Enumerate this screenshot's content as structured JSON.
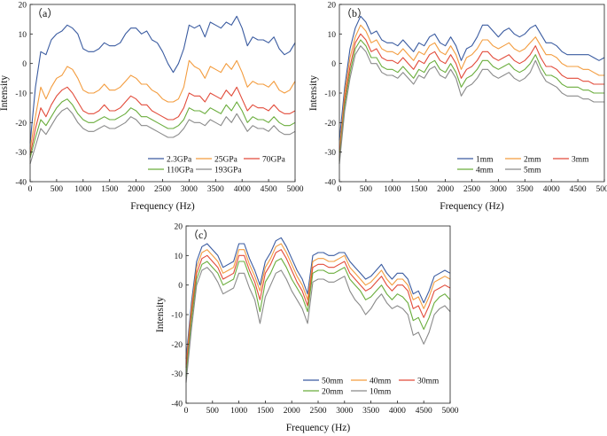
{
  "chart_data": [
    {
      "type": "line",
      "panel_label": "（a）",
      "xlabel": "Frequency (Hz)",
      "ylabel": "Intensity",
      "xlim": [
        0,
        5000
      ],
      "ylim": [
        -40,
        20
      ],
      "xticks": [
        0,
        500,
        1000,
        1500,
        2000,
        2500,
        3000,
        3500,
        4000,
        4500,
        5000
      ],
      "yticks": [
        -40,
        -30,
        -20,
        -10,
        0,
        10,
        20
      ],
      "legend_position": "bottom-right",
      "legend_columns": 3,
      "x": [
        0,
        100,
        200,
        300,
        400,
        500,
        600,
        700,
        800,
        900,
        1000,
        1100,
        1200,
        1300,
        1400,
        1500,
        1600,
        1700,
        1800,
        1900,
        2000,
        2100,
        2200,
        2300,
        2400,
        2500,
        2600,
        2700,
        2800,
        2900,
        3000,
        3100,
        3200,
        3300,
        3400,
        3500,
        3600,
        3700,
        3800,
        3900,
        4000,
        4100,
        4200,
        4300,
        4400,
        4500,
        4600,
        4700,
        4800,
        4900,
        5000
      ],
      "series": [
        {
          "name": "2.3GPa",
          "color": "#3a5ba0",
          "values": [
            -27,
            -8,
            4,
            3,
            8,
            10,
            11,
            13,
            12,
            10,
            5,
            4,
            4,
            5,
            7,
            6,
            6,
            7,
            10,
            12,
            12,
            10,
            11,
            8,
            7,
            4,
            0,
            -3,
            0,
            5,
            13,
            12,
            13,
            9,
            14,
            13,
            12,
            14,
            13,
            16,
            12,
            6,
            9,
            8,
            8,
            7,
            9,
            5,
            3,
            4,
            7
          ]
        },
        {
          "name": "25GPa",
          "color": "#f39c3e",
          "values": [
            -29,
            -18,
            -8,
            -12,
            -8,
            -5,
            -4,
            -1,
            -2,
            -5,
            -9,
            -10,
            -10,
            -9,
            -7,
            -9,
            -9,
            -8,
            -6,
            -4,
            -5,
            -7,
            -7,
            -9,
            -10,
            -12,
            -13,
            -13,
            -12,
            -8,
            1,
            -1,
            -2,
            -5,
            -1,
            -2,
            -3,
            0,
            -2,
            1,
            -3,
            -8,
            -6,
            -7,
            -7,
            -8,
            -6,
            -9,
            -10,
            -9,
            -6
          ]
        },
        {
          "name": "70GPa",
          "color": "#e24b3a",
          "values": [
            -31,
            -22,
            -15,
            -18,
            -14,
            -11,
            -9,
            -8,
            -10,
            -13,
            -16,
            -17,
            -17,
            -16,
            -14,
            -16,
            -16,
            -15,
            -13,
            -11,
            -12,
            -14,
            -14,
            -16,
            -17,
            -18,
            -19,
            -19,
            -18,
            -15,
            -10,
            -11,
            -11,
            -13,
            -10,
            -11,
            -12,
            -9,
            -11,
            -8,
            -12,
            -16,
            -14,
            -15,
            -15,
            -16,
            -14,
            -16,
            -17,
            -17,
            -16
          ]
        },
        {
          "name": "110GPa",
          "color": "#6aad3c",
          "values": [
            -32,
            -25,
            -19,
            -21,
            -18,
            -15,
            -13,
            -12,
            -14,
            -17,
            -19,
            -20,
            -20,
            -19,
            -18,
            -19,
            -19,
            -18,
            -17,
            -15,
            -16,
            -18,
            -18,
            -19,
            -20,
            -21,
            -22,
            -22,
            -21,
            -19,
            -15,
            -16,
            -16,
            -17,
            -15,
            -16,
            -17,
            -14,
            -16,
            -13,
            -16,
            -20,
            -18,
            -19,
            -19,
            -20,
            -18,
            -20,
            -21,
            -21,
            -20
          ]
        },
        {
          "name": "193GPa",
          "color": "#8a8a8a",
          "values": [
            -34,
            -28,
            -22,
            -24,
            -21,
            -18,
            -16,
            -15,
            -17,
            -20,
            -22,
            -23,
            -23,
            -22,
            -21,
            -22,
            -22,
            -21,
            -20,
            -18,
            -19,
            -21,
            -21,
            -22,
            -23,
            -24,
            -25,
            -25,
            -24,
            -22,
            -19,
            -20,
            -20,
            -21,
            -19,
            -20,
            -21,
            -18,
            -20,
            -17,
            -20,
            -23,
            -21,
            -22,
            -22,
            -23,
            -21,
            -23,
            -24,
            -24,
            -23
          ]
        }
      ]
    },
    {
      "type": "line",
      "panel_label": "（b）",
      "xlabel": "Frequency (Hz)",
      "ylabel": "Intensity",
      "xlim": [
        0,
        5000
      ],
      "ylim": [
        -40,
        20
      ],
      "xticks": [
        0,
        500,
        1000,
        1500,
        2000,
        2500,
        3000,
        3500,
        4000,
        4500,
        5000
      ],
      "yticks": [
        -40,
        -30,
        -20,
        -10,
        0,
        10,
        20
      ],
      "legend_position": "bottom-right",
      "legend_columns": 3,
      "x": [
        0,
        100,
        200,
        300,
        400,
        500,
        600,
        700,
        800,
        900,
        1000,
        1100,
        1200,
        1300,
        1400,
        1500,
        1600,
        1700,
        1800,
        1900,
        2000,
        2100,
        2200,
        2300,
        2400,
        2500,
        2600,
        2700,
        2800,
        2900,
        3000,
        3100,
        3200,
        3300,
        3400,
        3500,
        3600,
        3700,
        3800,
        3900,
        4000,
        4100,
        4200,
        4300,
        4400,
        4500,
        4600,
        4700,
        4800,
        4900,
        5000
      ],
      "series": [
        {
          "name": "1mm",
          "color": "#3a5ba0",
          "values": [
            -26,
            -8,
            5,
            12,
            16,
            14,
            10,
            11,
            8,
            7,
            7,
            6,
            8,
            6,
            4,
            7,
            6,
            9,
            10,
            7,
            6,
            9,
            6,
            1,
            5,
            6,
            9,
            13,
            13,
            11,
            9,
            11,
            12,
            10,
            9,
            10,
            12,
            13,
            10,
            7,
            7,
            6,
            4,
            3,
            3,
            3,
            3,
            3,
            2,
            1,
            2
          ]
        },
        {
          "name": "2mm",
          "color": "#f39c3e",
          "values": [
            -30,
            -10,
            2,
            9,
            13,
            11,
            7,
            8,
            5,
            4,
            4,
            3,
            5,
            3,
            1,
            4,
            3,
            6,
            7,
            4,
            3,
            6,
            3,
            -2,
            2,
            3,
            5,
            8,
            8,
            6,
            5,
            6,
            7,
            5,
            4,
            5,
            7,
            9,
            6,
            3,
            3,
            2,
            0,
            -1,
            -1,
            -1,
            -2,
            -2,
            -3,
            -4,
            -4
          ]
        },
        {
          "name": "3mm",
          "color": "#e24b3a",
          "values": [
            -32,
            -12,
            -1,
            7,
            10,
            8,
            4,
            5,
            2,
            1,
            1,
            0,
            2,
            0,
            -2,
            1,
            0,
            3,
            4,
            1,
            0,
            3,
            0,
            -5,
            -2,
            -1,
            1,
            4,
            4,
            2,
            1,
            2,
            3,
            1,
            0,
            1,
            3,
            6,
            2,
            -1,
            -1,
            -2,
            -4,
            -5,
            -5,
            -5,
            -6,
            -6,
            -7,
            -7,
            -7
          ]
        },
        {
          "name": "4mm",
          "color": "#6aad3c",
          "values": [
            -33,
            -14,
            -3,
            5,
            8,
            6,
            2,
            2,
            -1,
            -2,
            -2,
            -3,
            -1,
            -3,
            -5,
            -2,
            -3,
            0,
            1,
            -2,
            -3,
            0,
            -3,
            -8,
            -5,
            -4,
            -2,
            1,
            1,
            -1,
            -2,
            -1,
            0,
            -2,
            -3,
            -2,
            0,
            3,
            -1,
            -4,
            -4,
            -5,
            -7,
            -8,
            -8,
            -8,
            -9,
            -9,
            -10,
            -10,
            -10
          ]
        },
        {
          "name": "5mm",
          "color": "#8a8a8a",
          "values": [
            -34,
            -16,
            -5,
            3,
            6,
            4,
            0,
            0,
            -3,
            -4,
            -4,
            -5,
            -3,
            -5,
            -7,
            -4,
            -5,
            -2,
            -1,
            -4,
            -5,
            -2,
            -5,
            -11,
            -8,
            -7,
            -5,
            -2,
            -2,
            -4,
            -5,
            -4,
            -3,
            -5,
            -6,
            -5,
            -3,
            1,
            -3,
            -6,
            -7,
            -8,
            -10,
            -11,
            -11,
            -11,
            -12,
            -12,
            -13,
            -13,
            -13
          ]
        }
      ]
    },
    {
      "type": "line",
      "panel_label": "（c）",
      "xlabel": "Frequency (Hz)",
      "ylabel": "Intensity",
      "xlim": [
        0,
        5000
      ],
      "ylim": [
        -40,
        20
      ],
      "xticks": [
        0,
        500,
        1000,
        1500,
        2000,
        2500,
        3000,
        3500,
        4000,
        4500,
        5000
      ],
      "yticks": [
        -40,
        -30,
        -20,
        -10,
        0,
        10,
        20
      ],
      "legend_position": "bottom-right",
      "legend_columns": 3,
      "x": [
        0,
        100,
        200,
        300,
        400,
        500,
        600,
        700,
        800,
        900,
        1000,
        1100,
        1200,
        1300,
        1400,
        1500,
        1600,
        1700,
        1800,
        1900,
        2000,
        2100,
        2200,
        2300,
        2400,
        2500,
        2600,
        2700,
        2800,
        2900,
        3000,
        3100,
        3200,
        3300,
        3400,
        3500,
        3600,
        3700,
        3800,
        3900,
        4000,
        4100,
        4200,
        4300,
        4400,
        4500,
        4600,
        4700,
        4800,
        4900,
        5000
      ],
      "series": [
        {
          "name": "50mm",
          "color": "#3a5ba0",
          "values": [
            -25,
            -6,
            8,
            13,
            14,
            12,
            10,
            6,
            7,
            8,
            14,
            14,
            9,
            5,
            0,
            8,
            11,
            15,
            16,
            13,
            9,
            5,
            2,
            -3,
            10,
            11,
            11,
            10,
            10,
            11,
            11,
            8,
            6,
            4,
            2,
            3,
            5,
            7,
            4,
            2,
            4,
            4,
            2,
            -3,
            -2,
            -6,
            -2,
            3,
            4,
            5,
            4
          ]
        },
        {
          "name": "40mm",
          "color": "#f39c3e",
          "values": [
            -27,
            -8,
            6,
            11,
            12,
            10,
            8,
            4,
            5,
            6,
            12,
            12,
            7,
            3,
            -2,
            6,
            9,
            13,
            14,
            11,
            7,
            3,
            0,
            -5,
            8,
            9,
            9,
            8,
            8,
            9,
            10,
            6,
            4,
            2,
            0,
            1,
            3,
            5,
            2,
            0,
            2,
            2,
            0,
            -5,
            -4,
            -8,
            -4,
            1,
            2,
            3,
            2
          ]
        },
        {
          "name": "30mm",
          "color": "#e24b3a",
          "values": [
            -28,
            -10,
            4,
            9,
            10,
            8,
            6,
            2,
            3,
            4,
            10,
            10,
            5,
            1,
            -5,
            4,
            7,
            11,
            12,
            9,
            5,
            1,
            -2,
            -7,
            6,
            7,
            7,
            6,
            6,
            7,
            8,
            4,
            2,
            0,
            -2,
            -1,
            1,
            3,
            0,
            -2,
            0,
            0,
            -2,
            -8,
            -7,
            -11,
            -7,
            -2,
            -1,
            0,
            -1
          ]
        },
        {
          "name": "20mm",
          "color": "#6aad3c",
          "values": [
            -31,
            -12,
            2,
            7,
            8,
            6,
            4,
            0,
            1,
            2,
            8,
            8,
            3,
            -1,
            -9,
            1,
            4,
            8,
            9,
            6,
            2,
            -1,
            -4,
            -9,
            4,
            5,
            5,
            4,
            4,
            5,
            6,
            2,
            0,
            -2,
            -5,
            -4,
            -2,
            0,
            -3,
            -5,
            -3,
            -4,
            -6,
            -12,
            -11,
            -15,
            -11,
            -6,
            -4,
            -3,
            -5
          ]
        },
        {
          "name": "10mm",
          "color": "#8a8a8a",
          "values": [
            -33,
            -15,
            0,
            5,
            6,
            4,
            1,
            -3,
            -2,
            -1,
            4,
            4,
            -1,
            -5,
            -13,
            -4,
            0,
            4,
            5,
            2,
            -2,
            -5,
            -8,
            -13,
            1,
            2,
            2,
            1,
            1,
            2,
            3,
            -2,
            -5,
            -7,
            -10,
            -8,
            -5,
            -3,
            -6,
            -8,
            -7,
            -8,
            -10,
            -17,
            -16,
            -20,
            -16,
            -10,
            -8,
            -7,
            -9
          ]
        }
      ]
    }
  ]
}
